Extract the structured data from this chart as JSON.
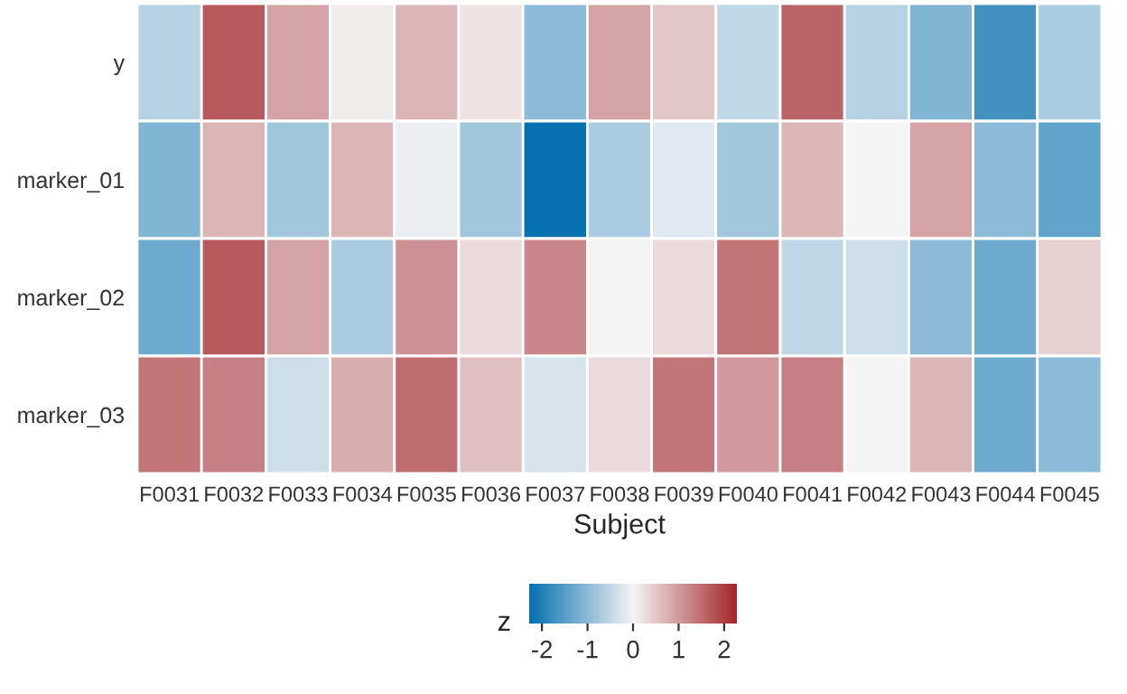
{
  "chart_data": {
    "type": "heatmap",
    "xlabel": "Subject",
    "clabel": "z",
    "categories": [
      "F0031",
      "F0032",
      "F0033",
      "F0034",
      "F0035",
      "F0036",
      "F0037",
      "F0038",
      "F0039",
      "F0040",
      "F0041",
      "F0042",
      "F0043",
      "F0044",
      "F0045"
    ],
    "y_categories": [
      "y",
      "marker_01",
      "marker_02",
      "marker_03"
    ],
    "cells": [
      [
        -0.6,
        1.7,
        0.9,
        0.1,
        0.7,
        0.2,
        -1.0,
        0.9,
        0.5,
        -0.5,
        1.6,
        -0.6,
        -1.1,
        -1.7,
        -0.7
      ],
      [
        -1.1,
        0.7,
        -0.8,
        0.7,
        -0.1,
        -0.8,
        -2.28,
        -0.7,
        -0.2,
        -0.8,
        0.7,
        0.0,
        0.9,
        -1.0,
        -1.4
      ],
      [
        -1.3,
        1.7,
        0.9,
        -0.7,
        1.1,
        0.3,
        1.2,
        0.0,
        0.3,
        1.4,
        -0.5,
        -0.4,
        -1.0,
        -1.3,
        0.4
      ],
      [
        1.4,
        1.3,
        -0.4,
        0.8,
        1.5,
        0.6,
        -0.3,
        0.3,
        1.4,
        1.0,
        1.3,
        0.0,
        0.7,
        -1.3,
        -1.0
      ]
    ],
    "clim": [
      -2.28,
      2.28
    ],
    "cticks": [
      -2,
      -1,
      0,
      1,
      2
    ]
  }
}
